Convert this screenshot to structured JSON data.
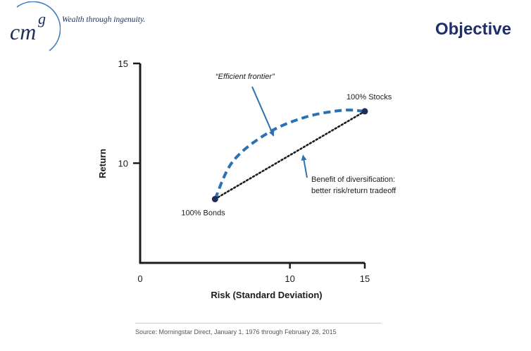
{
  "brand": {
    "logo_text": "cm",
    "logo_superscript": "g",
    "tagline": "Wealth through ingenuity."
  },
  "header": {
    "title": "Objective"
  },
  "chart_data": {
    "type": "line",
    "xlabel": "Risk (Standard Deviation)",
    "ylabel": "Return",
    "xlim": [
      0,
      15
    ],
    "ylim": [
      5,
      15
    ],
    "x_ticks": [
      0,
      10,
      15
    ],
    "y_ticks": [
      10,
      15
    ],
    "grid": false,
    "series": [
      {
        "name": "Efficient frontier",
        "style": "dashed",
        "color": "#2b71b3",
        "points": [
          [
            5,
            8.2
          ],
          [
            6.2,
            10.1
          ],
          [
            8.5,
            11.5
          ],
          [
            11,
            12.3
          ],
          [
            13.5,
            12.65
          ],
          [
            15,
            12.6
          ]
        ]
      },
      {
        "name": "",
        "style": "dotted",
        "color": "#1c1c1c",
        "points": [
          [
            5,
            8.2
          ],
          [
            15,
            12.6
          ]
        ]
      }
    ],
    "points": [
      {
        "label": "100% Bonds",
        "x": 5,
        "y": 8.2
      },
      {
        "label": "100% Stocks",
        "x": 15,
        "y": 12.6
      }
    ],
    "annotations": [
      {
        "text": "“Efficient frontier”",
        "points_to": [
          9,
          11.3
        ]
      },
      {
        "text_lines": [
          "Benefit of diversification:",
          "better risk/return tradeoff"
        ],
        "points_to": [
          10.5,
          10.6
        ]
      }
    ]
  },
  "footer": {
    "source": "Source: Morningstar Direct, January 1, 1976 through February 28, 2015"
  },
  "colors": {
    "brand_navy": "#1f2f6b",
    "frontier_blue": "#2b71b3",
    "axis": "#1c1c1c"
  }
}
